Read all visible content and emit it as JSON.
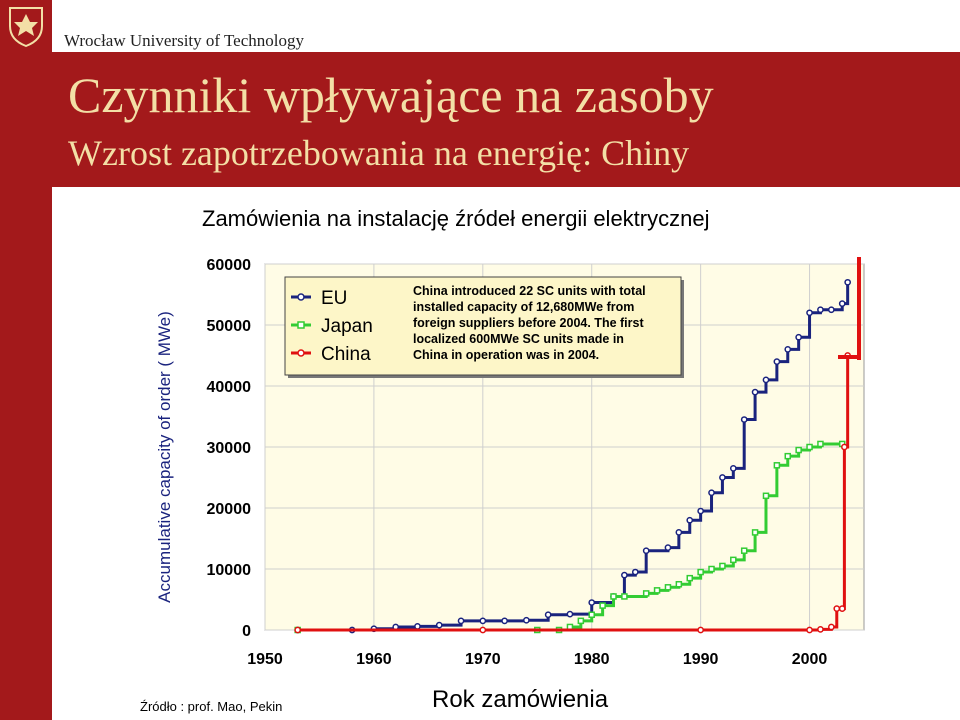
{
  "header": {
    "university": "Wrocław University of Technology",
    "title": "Czynniki wpływające na zasoby",
    "subtitle": "Wzrost zapotrzebowania na energię: Chiny"
  },
  "slide": {
    "chart_caption": "Zamówienia na instalację źródeł energii elektrycznej",
    "source": "Źródło : prof. Mao, Pekin",
    "x_title": "Rok zamówienia"
  },
  "colors": {
    "brand_red": "#a3191b",
    "title_text": "#f3dfa6",
    "eu": "#1a237e",
    "japan": "#33cc33",
    "china": "#e01010",
    "plot_bg": "#fffce6"
  },
  "chart_data": {
    "type": "line",
    "ylabel": "Accumulative capacity of order ( MWe)",
    "xlabel": "Rok zamówienia",
    "xlim": [
      1950,
      2005
    ],
    "ylim": [
      0,
      60000
    ],
    "x_ticks": [
      "1950",
      "1960",
      "1970",
      "1980",
      "1990",
      "2000"
    ],
    "y_ticks": [
      "0",
      "10000",
      "20000",
      "30000",
      "40000",
      "50000",
      "60000"
    ],
    "grid": true,
    "annotation": "China introduced 22 SC units with total installed capacity of 12,680MWe from foreign suppliers before 2004. The first localized 600MWe SC units made in China in operation was in 2004.",
    "series": [
      {
        "name": "EU",
        "points": [
          [
            1953,
            0
          ],
          [
            1958,
            0
          ],
          [
            1960,
            200
          ],
          [
            1962,
            500
          ],
          [
            1964,
            600
          ],
          [
            1966,
            800
          ],
          [
            1968,
            1500
          ],
          [
            1970,
            1500
          ],
          [
            1972,
            1500
          ],
          [
            1974,
            1600
          ],
          [
            1976,
            2500
          ],
          [
            1978,
            2600
          ],
          [
            1980,
            4500
          ],
          [
            1982,
            5500
          ],
          [
            1983,
            9000
          ],
          [
            1984,
            9500
          ],
          [
            1985,
            13000
          ],
          [
            1987,
            13500
          ],
          [
            1988,
            16000
          ],
          [
            1989,
            18000
          ],
          [
            1990,
            19500
          ],
          [
            1991,
            22500
          ],
          [
            1992,
            25000
          ],
          [
            1993,
            26500
          ],
          [
            1994,
            34500
          ],
          [
            1995,
            39000
          ],
          [
            1996,
            41000
          ],
          [
            1997,
            44000
          ],
          [
            1998,
            46000
          ],
          [
            1999,
            48000
          ],
          [
            2000,
            52000
          ],
          [
            2001,
            52500
          ],
          [
            2002,
            52500
          ],
          [
            2003,
            53500
          ],
          [
            2003.5,
            57000
          ]
        ]
      },
      {
        "name": "Japan",
        "points": [
          [
            1953,
            0
          ],
          [
            1975,
            0
          ],
          [
            1977,
            0
          ],
          [
            1978,
            500
          ],
          [
            1979,
            1500
          ],
          [
            1980,
            2500
          ],
          [
            1981,
            4000
          ],
          [
            1982,
            5500
          ],
          [
            1983,
            5500
          ],
          [
            1985,
            6000
          ],
          [
            1986,
            6500
          ],
          [
            1987,
            7000
          ],
          [
            1988,
            7500
          ],
          [
            1989,
            8500
          ],
          [
            1990,
            9500
          ],
          [
            1991,
            10000
          ],
          [
            1992,
            10500
          ],
          [
            1993,
            11500
          ],
          [
            1994,
            13000
          ],
          [
            1995,
            16000
          ],
          [
            1996,
            22000
          ],
          [
            1997,
            27000
          ],
          [
            1998,
            28500
          ],
          [
            1999,
            29500
          ],
          [
            2000,
            30000
          ],
          [
            2001,
            30500
          ],
          [
            2003,
            30500
          ]
        ]
      },
      {
        "name": "China",
        "points": [
          [
            1953,
            0
          ],
          [
            1970,
            0
          ],
          [
            1990,
            0
          ],
          [
            2000,
            0
          ],
          [
            2001,
            100
          ],
          [
            2002,
            500
          ],
          [
            2002.5,
            3500
          ],
          [
            2003,
            3500
          ],
          [
            2003.2,
            30000
          ],
          [
            2003.5,
            45000
          ]
        ]
      }
    ]
  }
}
